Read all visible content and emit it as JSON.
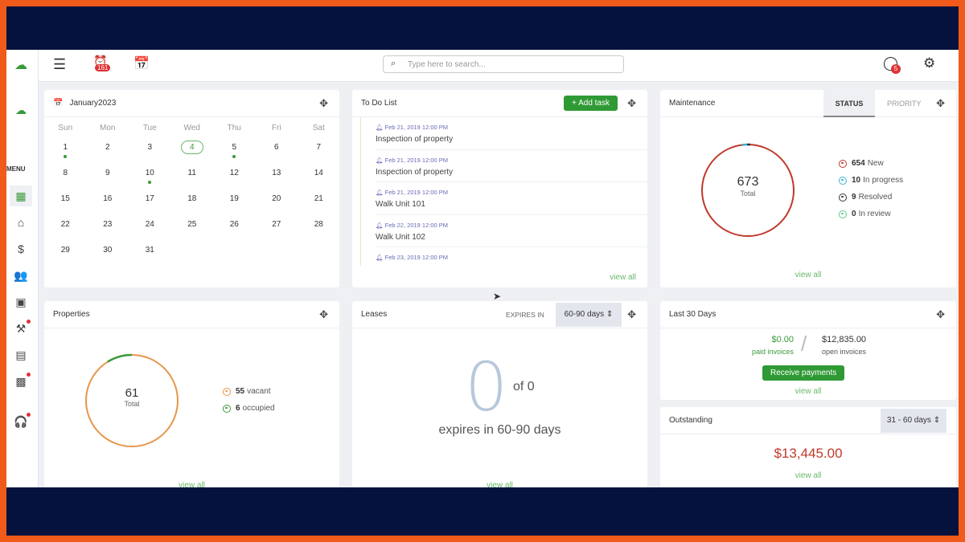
{
  "topbar": {
    "alerts_badge": "161",
    "search_placeholder": "Type here to search...",
    "notif_badge": "5"
  },
  "sidebar": {
    "menu_label": "MENU",
    "items": [
      "dashboard",
      "home",
      "payments",
      "people",
      "reports",
      "maintenance",
      "documents",
      "leases",
      "support"
    ]
  },
  "calendar": {
    "title": "January2023",
    "weekdays": [
      "Sun",
      "Mon",
      "Tue",
      "Wed",
      "Thu",
      "Fri",
      "Sat"
    ],
    "days": [
      "1",
      "2",
      "3",
      "4",
      "5",
      "6",
      "7",
      "8",
      "9",
      "10",
      "11",
      "12",
      "13",
      "14",
      "15",
      "16",
      "17",
      "18",
      "19",
      "20",
      "21",
      "22",
      "23",
      "24",
      "25",
      "26",
      "27",
      "28",
      "29",
      "30",
      "31"
    ],
    "today": "4",
    "event_days": [
      "1",
      "5",
      "10"
    ]
  },
  "todo": {
    "title": "To Do List",
    "add_label": "+ Add task",
    "view_all": "view all",
    "items": [
      {
        "date": "Feb 21, 2019 12:00 PM",
        "title": "Inspection of property"
      },
      {
        "date": "Feb 21, 2019 12:00 PM",
        "title": "Inspection of property"
      },
      {
        "date": "Feb 21, 2019 12:00 PM",
        "title": "Walk Unit 101"
      },
      {
        "date": "Feb 22, 2019 12:00 PM",
        "title": "Walk Unit 102"
      },
      {
        "date": "Feb 23, 2019 12:00 PM",
        "title": ""
      }
    ]
  },
  "maintenance": {
    "title": "Maintenance",
    "tabs": [
      "STATUS",
      "PRIORITY"
    ],
    "active_tab": "STATUS",
    "total": "673",
    "total_label": "Total",
    "view_all": "view all",
    "legend": [
      {
        "count": "654",
        "label": "New",
        "color": "#c0392b"
      },
      {
        "count": "10",
        "label": "In progress",
        "color": "#3ab0d8"
      },
      {
        "count": "9",
        "label": "Resolved",
        "color": "#333333"
      },
      {
        "count": "0",
        "label": "In review",
        "color": "#5cc98a"
      }
    ]
  },
  "properties": {
    "title": "Properties",
    "total": "61",
    "total_label": "Total",
    "view_all": "view all",
    "legend": [
      {
        "count": "55",
        "label": "vacant",
        "color": "#e8954a"
      },
      {
        "count": "6",
        "label": "occupied",
        "color": "#3a9a3a"
      }
    ]
  },
  "leases": {
    "title": "Leases",
    "expires_label": "EXPIRES IN",
    "range": "60-90 days",
    "big": "0",
    "of": "of 0",
    "caption": "expires in 60-90 days",
    "view_all": "view all"
  },
  "last30": {
    "title": "Last 30 Days",
    "paid": "$0.00",
    "paid_label": "paid invoices",
    "open": "$12,835.00",
    "open_label": "open invoices",
    "button": "Receive payments",
    "view_all": "view all"
  },
  "outstanding": {
    "title": "Outstanding",
    "range": "31 - 60 days",
    "amount": "$13,445.00",
    "view_all": "view all"
  }
}
